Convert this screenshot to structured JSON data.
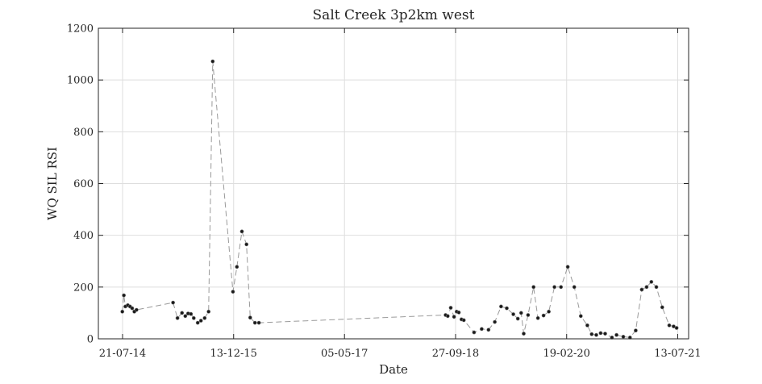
{
  "chart_data": {
    "type": "line",
    "title": "Salt Creek 3p2km west",
    "xlabel": "Date",
    "ylabel": "WQ SIL RSI",
    "ylim": [
      0,
      1200
    ],
    "xlim": [
      "2014-04-01",
      "2021-09-01"
    ],
    "yticks": [
      0,
      200,
      400,
      600,
      800,
      1000,
      1200
    ],
    "xticks": [
      {
        "date": "2014-07-21",
        "label": "21-07-14"
      },
      {
        "date": "2015-12-13",
        "label": "13-12-15"
      },
      {
        "date": "2017-05-05",
        "label": "05-05-17"
      },
      {
        "date": "2018-09-27",
        "label": "27-09-18"
      },
      {
        "date": "2020-02-19",
        "label": "19-02-20"
      },
      {
        "date": "2021-07-13",
        "label": "13-07-21"
      }
    ],
    "grid": true,
    "line_style": "dashed",
    "line_color": "#9a9a9a",
    "marker_color": "#1a1a1a",
    "series": [
      {
        "x": [
          "2014-07-20",
          "2014-07-27",
          "2014-08-03",
          "2014-08-14",
          "2014-08-24",
          "2014-09-03",
          "2014-09-13",
          "2014-09-23",
          "2015-03-10",
          "2015-03-30",
          "2015-04-20",
          "2015-05-05",
          "2015-05-18",
          "2015-05-31",
          "2015-06-13",
          "2015-07-01",
          "2015-07-16",
          "2015-08-02",
          "2015-08-20",
          "2015-09-08",
          "2015-12-10",
          "2015-12-28",
          "2016-01-20",
          "2016-02-10",
          "2016-02-27",
          "2016-03-20",
          "2016-04-07",
          "2018-08-12",
          "2018-08-22",
          "2018-09-05",
          "2018-09-20",
          "2018-10-02",
          "2018-10-12",
          "2018-10-24",
          "2018-11-04",
          "2018-12-21",
          "2019-01-25",
          "2019-02-25",
          "2019-03-26",
          "2019-04-24",
          "2019-05-20",
          "2019-06-19",
          "2019-07-10",
          "2019-07-25",
          "2019-08-06",
          "2019-08-26",
          "2019-09-20",
          "2019-10-10",
          "2019-11-05",
          "2019-11-29",
          "2019-12-25",
          "2020-01-24",
          "2020-02-24",
          "2020-03-25",
          "2020-04-24",
          "2020-05-24",
          "2020-06-13",
          "2020-07-04",
          "2020-07-24",
          "2020-08-14",
          "2020-09-14",
          "2020-10-05",
          "2020-11-05",
          "2020-12-06",
          "2021-01-01",
          "2021-01-29",
          "2021-02-20",
          "2021-03-14",
          "2021-04-06",
          "2021-05-03",
          "2021-06-04",
          "2021-06-24",
          "2021-07-08"
        ],
        "y": [
          105,
          168,
          125,
          130,
          125,
          118,
          105,
          112,
          140,
          80,
          100,
          88,
          98,
          96,
          80,
          62,
          70,
          80,
          105,
          1072,
          182,
          278,
          415,
          365,
          82,
          62,
          62,
          92,
          88,
          120,
          85,
          105,
          102,
          75,
          72,
          25,
          38,
          35,
          65,
          125,
          118,
          95,
          78,
          100,
          20,
          92,
          200,
          80,
          90,
          105,
          200,
          200,
          278,
          200,
          88,
          52,
          18,
          15,
          22,
          20,
          5,
          15,
          8,
          5,
          32,
          190,
          200,
          220,
          200,
          122,
          52,
          48,
          42
        ]
      }
    ]
  }
}
